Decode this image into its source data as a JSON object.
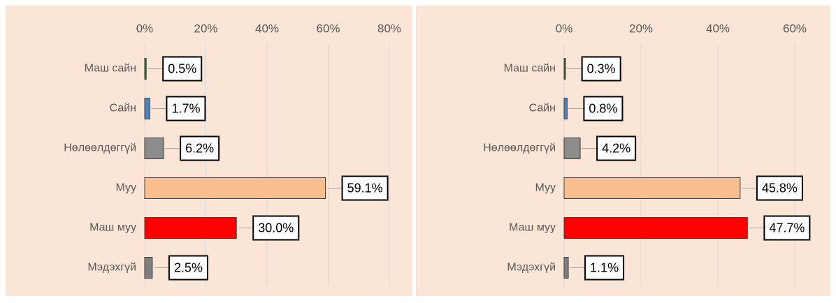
{
  "chart_data": [
    {
      "type": "bar",
      "orientation": "horizontal",
      "categories": [
        "Маш сайн",
        "Сайн",
        "Нөлөөлдөггүй",
        "Муу",
        "Маш муу",
        "Мэдэхгүй"
      ],
      "values": [
        0.5,
        1.7,
        6.2,
        59.1,
        30.0,
        2.5
      ],
      "value_labels": [
        "0.5%",
        "1.7%",
        "6.2%",
        "59.1%",
        "30.0%",
        "2.5%"
      ],
      "colors": [
        "#1e6b2e",
        "#4f81bd",
        "#8c8c8c",
        "#fbbf8f",
        "#ff0000",
        "#7f7f7f"
      ],
      "xlim": [
        0,
        80
      ],
      "xticks": [
        {
          "value": 0,
          "label": "0%"
        },
        {
          "value": 20,
          "label": "20%"
        },
        {
          "value": 40,
          "label": "40%"
        },
        {
          "value": 60,
          "label": "60%"
        },
        {
          "value": 80,
          "label": "80%"
        }
      ],
      "grid": true
    },
    {
      "type": "bar",
      "orientation": "horizontal",
      "categories": [
        "Маш сайн",
        "Сайн",
        "Нөлөөлдөггүй",
        "Муу",
        "Маш муу",
        "Мэдэхгүй"
      ],
      "values": [
        0.3,
        0.8,
        4.2,
        45.8,
        47.7,
        1.1
      ],
      "value_labels": [
        "0.3%",
        "0.8%",
        "4.2%",
        "45.8%",
        "47.7%",
        "1.1%"
      ],
      "colors": [
        "#1e6b2e",
        "#4f81bd",
        "#8c8c8c",
        "#fbbf8f",
        "#ff0000",
        "#7f7f7f"
      ],
      "xlim": [
        0,
        60
      ],
      "xticks": [
        {
          "value": 0,
          "label": "0%"
        },
        {
          "value": 20,
          "label": "20%"
        },
        {
          "value": 40,
          "label": "40%"
        },
        {
          "value": 60,
          "label": "60%"
        }
      ],
      "grid": true
    }
  ]
}
